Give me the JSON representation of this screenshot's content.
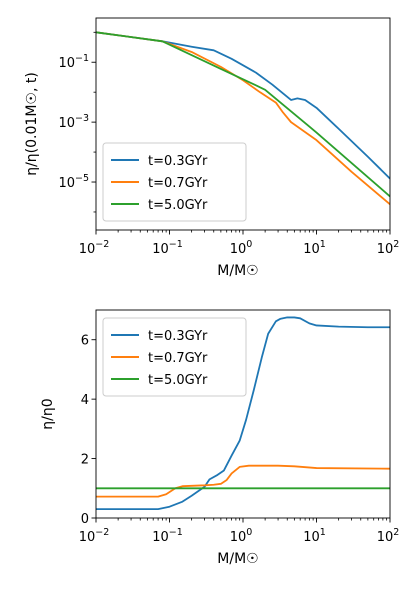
{
  "chart_data": [
    {
      "type": "line",
      "xlabel": "M/M☉",
      "ylabel": "η/η(0.01M☉, t)",
      "xscale": "log",
      "yscale": "log",
      "xlim": [
        0.01,
        100
      ],
      "ylim": [
        2.5e-07,
        3
      ],
      "xticks": [
        {
          "value": 0.01,
          "base": "10",
          "exp": "−2"
        },
        {
          "value": 0.1,
          "base": "10",
          "exp": "−1"
        },
        {
          "value": 1,
          "base": "10",
          "exp": "0"
        },
        {
          "value": 10,
          "base": "10",
          "exp": "1"
        },
        {
          "value": 100,
          "base": "10",
          "exp": "2"
        }
      ],
      "yticks": [
        {
          "value": 1e-05,
          "base": "10",
          "exp": "−5"
        },
        {
          "value": 0.001,
          "base": "10",
          "exp": "−3"
        },
        {
          "value": 0.1,
          "base": "10",
          "exp": "−1"
        }
      ],
      "legend_position": "bottom-left",
      "series": [
        {
          "name": "t=0.3GYr",
          "color": "#1f77b4",
          "x": [
            0.01,
            0.08,
            0.2,
            0.4,
            0.7,
            1.5,
            2.5,
            4.5,
            5.5,
            7,
            10,
            20,
            50,
            100
          ],
          "y": [
            1.0,
            0.5,
            0.33,
            0.25,
            0.13,
            0.045,
            0.018,
            0.0055,
            0.0062,
            0.0055,
            0.003,
            0.0006,
            7e-05,
            1.3e-05
          ]
        },
        {
          "name": "t=0.7GYr",
          "color": "#ff7f0e",
          "x": [
            0.01,
            0.08,
            0.2,
            0.5,
            1,
            1.7,
            2.8,
            3.5,
            4.5,
            10,
            30,
            100
          ],
          "y": [
            1.0,
            0.5,
            0.22,
            0.07,
            0.025,
            0.01,
            0.0045,
            0.0021,
            0.001,
            0.00025,
            2.2e-05,
            1.8e-06
          ]
        },
        {
          "name": "t=5.0GYr",
          "color": "#2ca02c",
          "x": [
            0.01,
            0.08,
            0.5,
            1.5,
            2,
            10,
            100
          ],
          "y": [
            1.0,
            0.5,
            0.06,
            0.017,
            0.012,
            0.00045,
            3.3e-06
          ]
        }
      ]
    },
    {
      "type": "line",
      "xlabel": "M/M☉",
      "ylabel": "η/η0",
      "xscale": "log",
      "yscale": "linear",
      "xlim": [
        0.01,
        100
      ],
      "ylim": [
        0,
        7
      ],
      "xticks": [
        {
          "value": 0.01,
          "base": "10",
          "exp": "−2"
        },
        {
          "value": 0.1,
          "base": "10",
          "exp": "−1"
        },
        {
          "value": 1,
          "base": "10",
          "exp": "0"
        },
        {
          "value": 10,
          "base": "10",
          "exp": "1"
        },
        {
          "value": 100,
          "base": "10",
          "exp": "2"
        }
      ],
      "yticks": [
        {
          "value": 0,
          "label": "0"
        },
        {
          "value": 2,
          "label": "2"
        },
        {
          "value": 4,
          "label": "4"
        },
        {
          "value": 6,
          "label": "6"
        }
      ],
      "legend_position": "top-left",
      "series": [
        {
          "name": "t=0.3GYr",
          "color": "#1f77b4",
          "x": [
            0.01,
            0.07,
            0.1,
            0.15,
            0.2,
            0.3,
            0.35,
            0.45,
            0.55,
            0.7,
            0.9,
            1.1,
            1.4,
            1.8,
            2.2,
            2.8,
            3.2,
            4,
            5,
            6,
            8,
            10,
            20,
            50,
            100
          ],
          "y": [
            0.3,
            0.3,
            0.38,
            0.55,
            0.75,
            1.05,
            1.3,
            1.45,
            1.6,
            2.1,
            2.6,
            3.3,
            4.3,
            5.4,
            6.2,
            6.62,
            6.7,
            6.75,
            6.75,
            6.72,
            6.55,
            6.48,
            6.44,
            6.42,
            6.42
          ]
        },
        {
          "name": "t=0.7GYr",
          "color": "#ff7f0e",
          "x": [
            0.01,
            0.07,
            0.09,
            0.12,
            0.15,
            0.3,
            0.4,
            0.5,
            0.6,
            0.7,
            0.9,
            1.2,
            2,
            3,
            5,
            10,
            100
          ],
          "y": [
            0.72,
            0.72,
            0.8,
            1.0,
            1.07,
            1.1,
            1.12,
            1.15,
            1.28,
            1.5,
            1.72,
            1.76,
            1.76,
            1.76,
            1.74,
            1.68,
            1.66
          ]
        },
        {
          "name": "t=5.0GYr",
          "color": "#2ca02c",
          "x": [
            0.01,
            100
          ],
          "y": [
            1.0,
            1.0
          ]
        }
      ]
    }
  ]
}
